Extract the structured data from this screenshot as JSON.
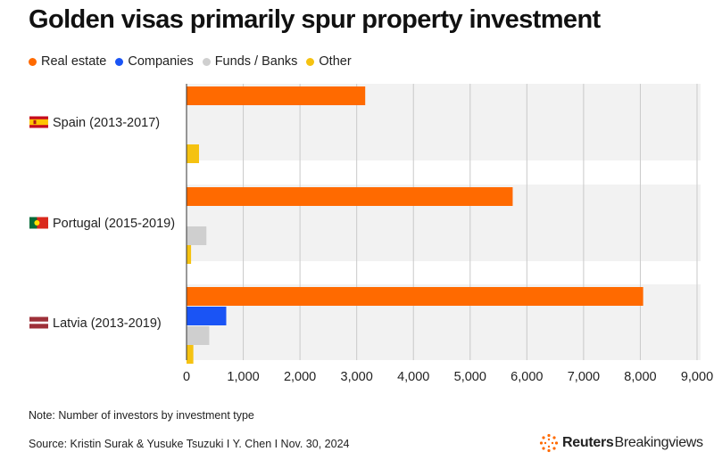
{
  "title": "Golden visas primarily spur property investment",
  "legend": [
    {
      "label": "Real estate",
      "color": "#ff6a00"
    },
    {
      "label": "Companies",
      "color": "#1a54f5"
    },
    {
      "label": "Funds / Banks",
      "color": "#cfcfcf"
    },
    {
      "label": "Other",
      "color": "#f5c211"
    }
  ],
  "chart_data": {
    "type": "bar",
    "orientation": "horizontal",
    "categories": [
      "Spain (2013-2017)",
      "Portugal (2015-2019)",
      "Latvia (2013-2019)"
    ],
    "series": [
      {
        "name": "Real estate",
        "color": "#ff6a00",
        "values": [
          3150,
          5750,
          8050
        ]
      },
      {
        "name": "Companies",
        "color": "#1a54f5",
        "values": [
          0,
          0,
          700
        ]
      },
      {
        "name": "Funds / Banks",
        "color": "#cfcfcf",
        "values": [
          0,
          350,
          400
        ]
      },
      {
        "name": "Other",
        "color": "#f5c211",
        "values": [
          220,
          80,
          120
        ]
      }
    ],
    "xlim": [
      0,
      9000
    ],
    "xticks": [
      0,
      1000,
      2000,
      3000,
      4000,
      5000,
      6000,
      7000,
      8000,
      9000
    ],
    "xtick_labels": [
      "0",
      "1,000",
      "2,000",
      "3,000",
      "4,000",
      "5,000",
      "6,000",
      "7,000",
      "8,000",
      "9,000"
    ],
    "flags": [
      "spain",
      "portugal",
      "latvia"
    ],
    "grid": true,
    "legend_position": "top-left"
  },
  "note": "Note: Number of investors by investment type",
  "source": "Source: Kristin Surak & Yusuke Tsuzuki I Y. Chen I Nov. 30, 2024",
  "brand": {
    "bold": "Reuters",
    "regular": "Breakingviews"
  }
}
